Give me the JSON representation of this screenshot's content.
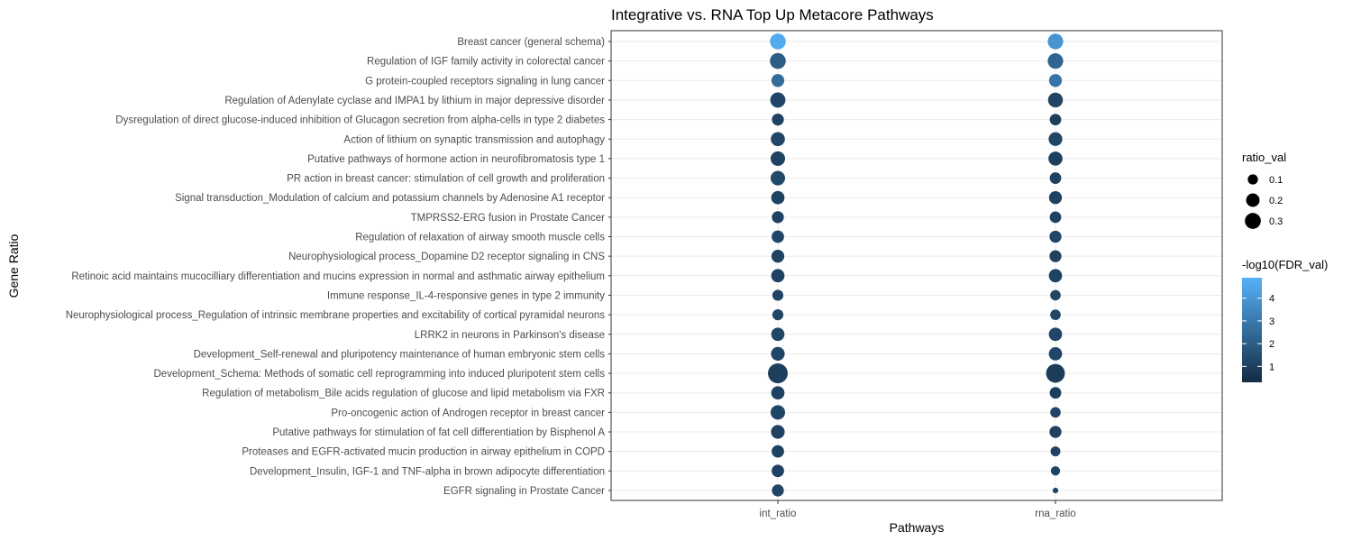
{
  "chart_data": {
    "type": "scatter",
    "title": "Integrative vs. RNA Top Up Metacore Pathways",
    "xlabel": "Pathways",
    "ylabel": "Gene Ratio",
    "x": [
      "int_ratio",
      "rna_ratio"
    ],
    "categories": [
      "Breast cancer (general schema)",
      "Regulation of IGF family activity in colorectal cancer",
      "G protein-coupled receptors signaling in lung cancer",
      "Regulation of Adenylate cyclase and IMPA1 by lithium in major depressive disorder",
      "Dysregulation of direct glucose-induced inhibition of Glucagon secretion from alpha-cells in type 2 diabetes ",
      "Action of lithium on synaptic transmission and autophagy",
      "Putative pathways of hormone action in neurofibromatosis type 1",
      "PR action in breast cancer: stimulation of cell growth and proliferation",
      "Signal transduction_Modulation of calcium and potassium channels by Adenosine A1 receptor",
      "TMPRSS2-ERG fusion in Prostate Cancer",
      "Regulation of relaxation of airway smooth muscle cells",
      "Neurophysiological process_Dopamine D2 receptor signaling in CNS",
      "Retinoic acid maintains mucocilliary differentiation and mucins expression in normal and asthmatic airway epithelium",
      "Immune response_IL-4-responsive genes in type 2 immunity",
      "Neurophysiological process_Regulation of intrinsic membrane properties and excitability of cortical pyramidal neurons",
      "LRRK2 in neurons in Parkinson's disease",
      "Development_Self-renewal and pluripotency maintenance of human embryonic stem cells",
      "Development_Schema: Methods of somatic cell reprogramming into induced pluripotent stem cells",
      "Regulation of metabolism_Bile acids regulation of glucose and lipid metabolism via FXR",
      "Pro-oncogenic action of Androgen receptor in breast cancer",
      "Putative pathways for stimulation of fat cell differentiation by Bisphenol A",
      "Proteases and EGFR-activated mucin production in airway epithelium in COPD",
      "Development_Insulin, IGF-1 and TNF-alpha in brown adipocyte differentiation",
      "EGFR signaling in Prostate Cancer"
    ],
    "series": [
      {
        "name": "int_ratio",
        "ratio_val": [
          0.2,
          0.2,
          0.12,
          0.18,
          0.1,
          0.15,
          0.16,
          0.16,
          0.13,
          0.1,
          0.11,
          0.12,
          0.13,
          0.08,
          0.08,
          0.13,
          0.14,
          0.34,
          0.13,
          0.16,
          0.14,
          0.11,
          0.11,
          0.1
        ],
        "neg_log10_fdr": [
          4.7,
          2.0,
          2.5,
          1.2,
          1.1,
          1.2,
          1.1,
          1.3,
          1.1,
          1.1,
          1.2,
          1.1,
          1.1,
          1.2,
          1.2,
          1.2,
          1.2,
          1.0,
          1.1,
          1.2,
          1.1,
          1.1,
          1.1,
          1.2
        ]
      },
      {
        "name": "rna_ratio",
        "ratio_val": [
          0.19,
          0.19,
          0.12,
          0.17,
          0.09,
          0.14,
          0.15,
          0.09,
          0.12,
          0.09,
          0.1,
          0.1,
          0.13,
          0.07,
          0.07,
          0.13,
          0.13,
          0.3,
          0.09,
          0.07,
          0.1,
          0.06,
          0.05,
          0.01
        ],
        "neg_log10_fdr": [
          3.9,
          2.3,
          2.8,
          1.2,
          1.0,
          1.2,
          1.0,
          1.1,
          1.1,
          1.1,
          1.2,
          1.1,
          1.1,
          1.2,
          1.2,
          1.2,
          1.2,
          0.9,
          1.0,
          1.2,
          1.1,
          1.1,
          1.1,
          1.2
        ]
      }
    ],
    "size_legend": {
      "title": "ratio_val",
      "breaks": [
        0.1,
        0.2,
        0.3
      ],
      "labels": [
        "0.1",
        "0.2",
        "0.3"
      ]
    },
    "color_legend": {
      "title": "-log10(FDR_val)",
      "breaks": [
        1,
        2,
        3,
        4
      ],
      "labels": [
        "1",
        "2",
        "3",
        "4"
      ],
      "range": [
        0.3,
        4.9
      ],
      "low_color": "#132B43",
      "high_color": "#56B1F7"
    },
    "grid": true,
    "legend_position": "right",
    "colors": {
      "panel_border": "#333333",
      "grid": "#ebebeb",
      "tick_text": "#4d4d4d"
    }
  }
}
